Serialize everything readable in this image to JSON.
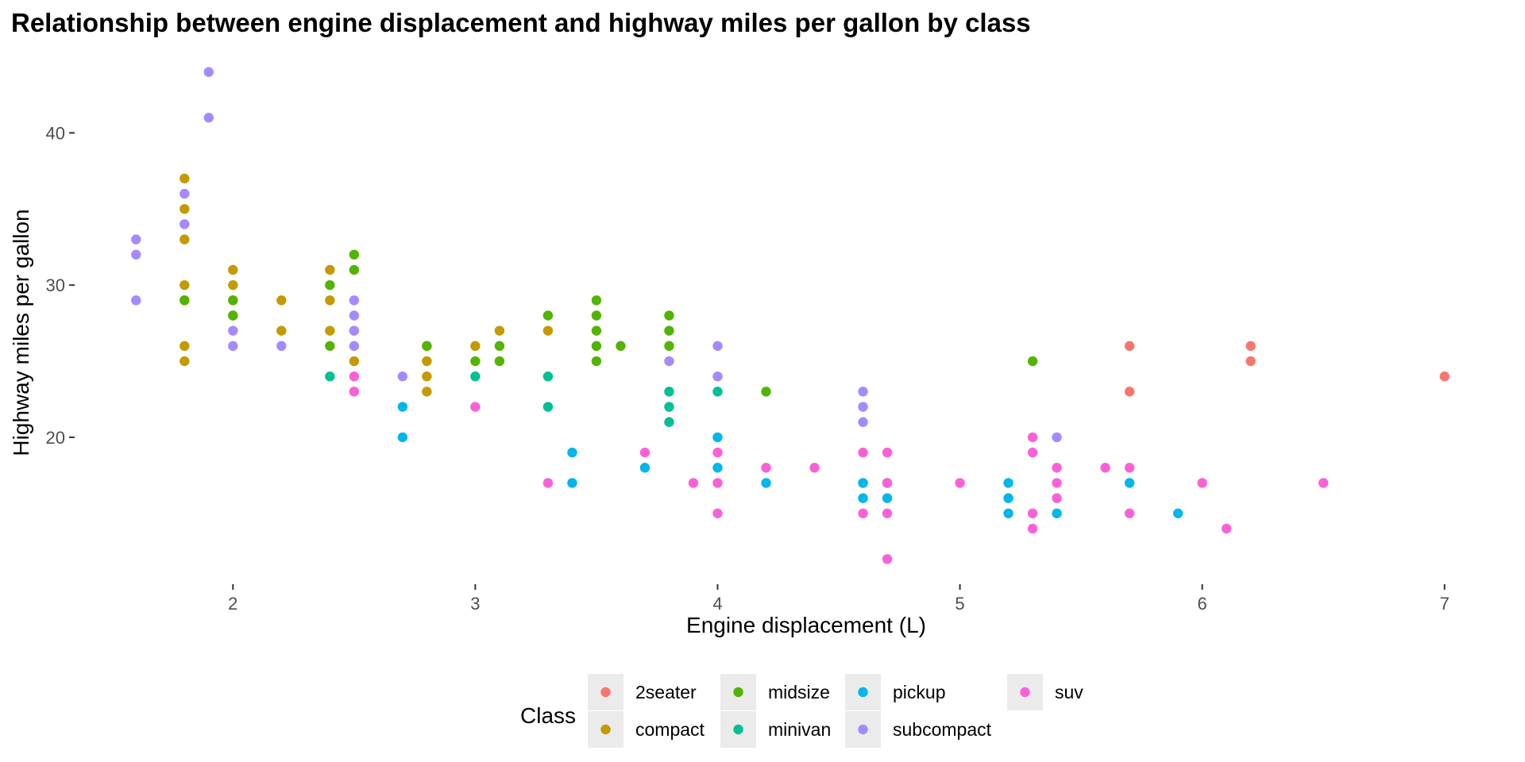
{
  "chart_data": {
    "type": "scatter",
    "title": "Relationship between engine displacement and highway miles per gallon by class",
    "xlabel": "Engine displacement (L)",
    "ylabel": "Highway miles per gallon",
    "xlim": [
      1.35,
      7.25
    ],
    "ylim": [
      10.4,
      45.6
    ],
    "x_ticks": [
      2,
      3,
      4,
      5,
      6,
      7
    ],
    "y_ticks": [
      20,
      30,
      40
    ],
    "grid": false,
    "legend": {
      "title": "Class",
      "position": "bottom",
      "entries": [
        "2seater",
        "compact",
        "midsize",
        "minivan",
        "pickup",
        "subcompact",
        "suv"
      ]
    },
    "series": [
      {
        "name": "2seater",
        "color": "#F8766D",
        "points": [
          [
            5.7,
            26
          ],
          [
            5.7,
            23
          ],
          [
            6.2,
            26
          ],
          [
            6.2,
            25
          ],
          [
            7.0,
            24
          ]
        ]
      },
      {
        "name": "compact",
        "color": "#C49A00",
        "points": [
          [
            1.8,
            37
          ],
          [
            1.8,
            35
          ],
          [
            1.8,
            33
          ],
          [
            1.8,
            30
          ],
          [
            1.8,
            29
          ],
          [
            1.8,
            26
          ],
          [
            1.8,
            25
          ],
          [
            2.0,
            31
          ],
          [
            2.0,
            30
          ],
          [
            2.0,
            29
          ],
          [
            2.0,
            28
          ],
          [
            2.2,
            29
          ],
          [
            2.2,
            27
          ],
          [
            2.4,
            31
          ],
          [
            2.4,
            29
          ],
          [
            2.4,
            27
          ],
          [
            2.5,
            27
          ],
          [
            2.5,
            25
          ],
          [
            2.8,
            26
          ],
          [
            2.8,
            25
          ],
          [
            2.8,
            24
          ],
          [
            2.8,
            23
          ],
          [
            3.0,
            26
          ],
          [
            3.1,
            27
          ],
          [
            3.3,
            27
          ]
        ]
      },
      {
        "name": "midsize",
        "color": "#53B400",
        "points": [
          [
            1.8,
            29
          ],
          [
            2.0,
            29
          ],
          [
            2.0,
            28
          ],
          [
            2.4,
            30
          ],
          [
            2.4,
            26
          ],
          [
            2.5,
            32
          ],
          [
            2.5,
            31
          ],
          [
            2.8,
            26
          ],
          [
            3.0,
            25
          ],
          [
            3.1,
            26
          ],
          [
            3.1,
            25
          ],
          [
            3.3,
            28
          ],
          [
            3.5,
            29
          ],
          [
            3.5,
            28
          ],
          [
            3.5,
            27
          ],
          [
            3.5,
            26
          ],
          [
            3.5,
            25
          ],
          [
            3.6,
            26
          ],
          [
            3.8,
            28
          ],
          [
            3.8,
            27
          ],
          [
            3.8,
            26
          ],
          [
            4.2,
            23
          ],
          [
            5.3,
            25
          ]
        ]
      },
      {
        "name": "minivan",
        "color": "#00C094",
        "points": [
          [
            2.4,
            24
          ],
          [
            3.0,
            24
          ],
          [
            3.3,
            24
          ],
          [
            3.3,
            22
          ],
          [
            3.8,
            23
          ],
          [
            3.8,
            22
          ],
          [
            3.8,
            21
          ],
          [
            4.0,
            23
          ]
        ]
      },
      {
        "name": "pickup",
        "color": "#00B6EB",
        "points": [
          [
            2.7,
            22
          ],
          [
            2.7,
            20
          ],
          [
            3.4,
            19
          ],
          [
            3.4,
            17
          ],
          [
            3.7,
            18
          ],
          [
            4.0,
            20
          ],
          [
            4.0,
            18
          ],
          [
            4.2,
            17
          ],
          [
            4.6,
            17
          ],
          [
            4.6,
            16
          ],
          [
            4.7,
            17
          ],
          [
            4.7,
            16
          ],
          [
            5.2,
            17
          ],
          [
            5.2,
            16
          ],
          [
            5.2,
            15
          ],
          [
            5.4,
            15
          ],
          [
            5.7,
            17
          ],
          [
            5.9,
            15
          ]
        ]
      },
      {
        "name": "subcompact",
        "color": "#A58AFF",
        "points": [
          [
            1.6,
            33
          ],
          [
            1.6,
            32
          ],
          [
            1.6,
            29
          ],
          [
            1.8,
            36
          ],
          [
            1.8,
            34
          ],
          [
            1.9,
            44
          ],
          [
            1.9,
            41
          ],
          [
            2.0,
            27
          ],
          [
            2.0,
            26
          ],
          [
            2.2,
            26
          ],
          [
            2.5,
            29
          ],
          [
            2.5,
            28
          ],
          [
            2.5,
            27
          ],
          [
            2.5,
            26
          ],
          [
            2.7,
            24
          ],
          [
            3.8,
            25
          ],
          [
            4.0,
            26
          ],
          [
            4.0,
            24
          ],
          [
            4.6,
            23
          ],
          [
            4.6,
            22
          ],
          [
            4.6,
            21
          ],
          [
            5.4,
            20
          ]
        ]
      },
      {
        "name": "suv",
        "color": "#FB61D7",
        "points": [
          [
            2.5,
            24
          ],
          [
            2.5,
            23
          ],
          [
            3.0,
            22
          ],
          [
            3.3,
            17
          ],
          [
            3.7,
            19
          ],
          [
            3.9,
            17
          ],
          [
            4.0,
            19
          ],
          [
            4.0,
            17
          ],
          [
            4.0,
            15
          ],
          [
            4.2,
            18
          ],
          [
            4.4,
            18
          ],
          [
            4.6,
            19
          ],
          [
            4.6,
            15
          ],
          [
            4.7,
            19
          ],
          [
            4.7,
            17
          ],
          [
            4.7,
            15
          ],
          [
            4.7,
            12
          ],
          [
            5.0,
            17
          ],
          [
            5.3,
            20
          ],
          [
            5.3,
            19
          ],
          [
            5.3,
            15
          ],
          [
            5.3,
            14
          ],
          [
            5.4,
            18
          ],
          [
            5.4,
            17
          ],
          [
            5.4,
            16
          ],
          [
            5.6,
            18
          ],
          [
            5.7,
            18
          ],
          [
            5.7,
            15
          ],
          [
            6.0,
            17
          ],
          [
            6.1,
            14
          ],
          [
            6.5,
            17
          ]
        ]
      }
    ]
  }
}
